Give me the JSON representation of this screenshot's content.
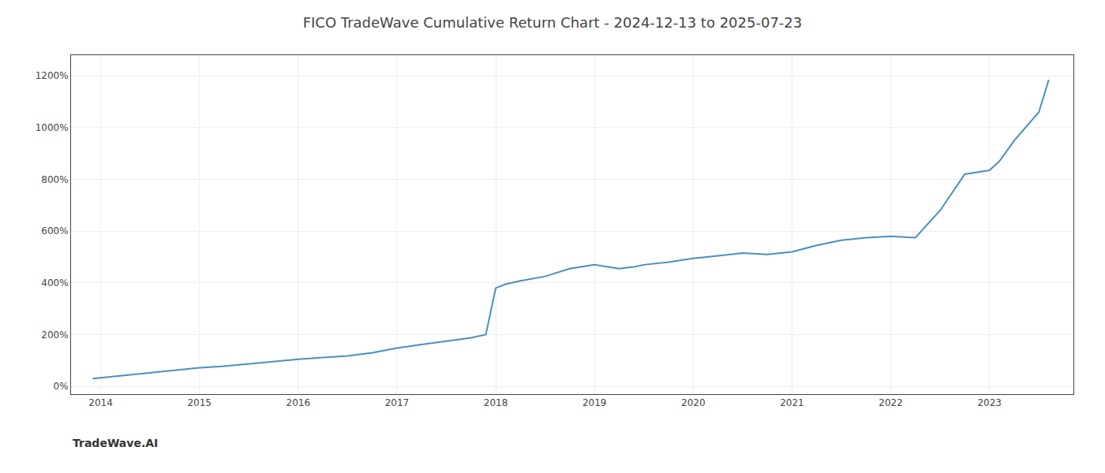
{
  "chart_data": {
    "type": "line",
    "title": "FICO TradeWave Cumulative Return Chart - 2024-12-13 to 2025-07-23",
    "annotations": [
      "TradeWave.AI"
    ],
    "x": [
      2013.92,
      2014.0,
      2014.2,
      2014.5,
      2014.75,
      2015.0,
      2015.25,
      2015.5,
      2015.75,
      2016.0,
      2016.25,
      2016.5,
      2016.75,
      2017.0,
      2017.25,
      2017.5,
      2017.6,
      2017.75,
      2017.9,
      2018.0,
      2018.1,
      2018.25,
      2018.5,
      2018.75,
      2019.0,
      2019.25,
      2019.4,
      2019.5,
      2019.75,
      2020.0,
      2020.25,
      2020.5,
      2020.75,
      2021.0,
      2021.1,
      2021.25,
      2021.5,
      2021.75,
      2022.0,
      2022.25,
      2022.5,
      2022.75,
      2023.0,
      2023.1,
      2023.25,
      2023.5,
      2023.6
    ],
    "values": [
      30,
      33,
      42,
      52,
      63,
      72,
      78,
      87,
      97,
      105,
      112,
      118,
      130,
      148,
      162,
      175,
      180,
      188,
      200,
      380,
      395,
      408,
      425,
      455,
      470,
      455,
      462,
      470,
      480,
      495,
      505,
      515,
      510,
      520,
      530,
      545,
      565,
      575,
      580,
      575,
      680,
      820,
      835,
      870,
      950,
      1060,
      1185
    ],
    "color": "#4a8fc0",
    "xlim": [
      2013.7,
      2023.85
    ],
    "xticks": [
      2014,
      2015,
      2016,
      2017,
      2018,
      2019,
      2020,
      2021,
      2022,
      2023
    ],
    "ylim": [
      -30,
      1280
    ],
    "yticks": [
      {
        "value": 0,
        "label": "0%"
      },
      {
        "value": 200,
        "label": "200%"
      },
      {
        "value": 400,
        "label": "400%"
      },
      {
        "value": 600,
        "label": "600%"
      },
      {
        "value": 800,
        "label": "800%"
      },
      {
        "value": 1000,
        "label": "1000%"
      },
      {
        "value": 1200,
        "label": "1200%"
      }
    ],
    "grid": true
  }
}
